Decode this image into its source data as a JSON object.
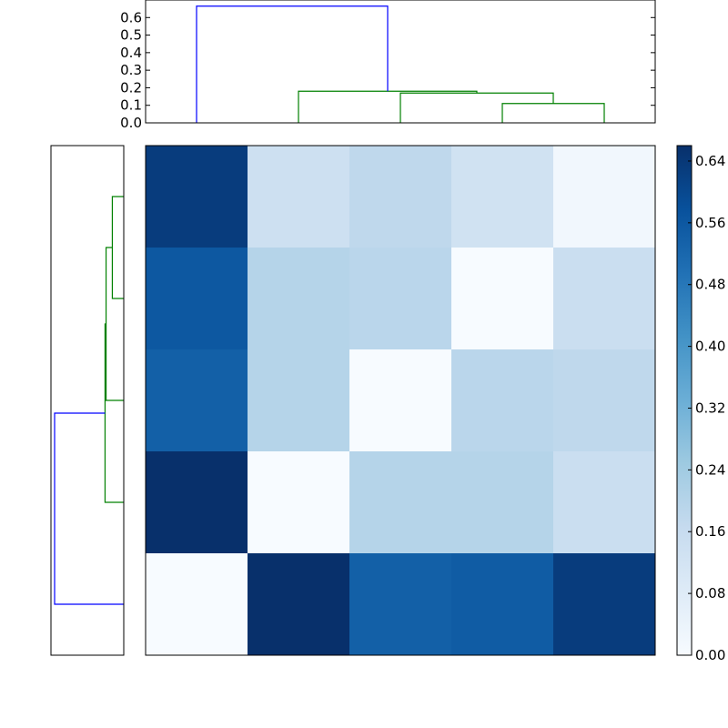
{
  "chart_data": [
    {
      "type": "dendrogram",
      "orientation": "top",
      "ylim": [
        0,
        0.7
      ],
      "yticks": [
        "0.0",
        "0.1",
        "0.2",
        "0.3",
        "0.4",
        "0.5",
        "0.6"
      ],
      "colors": {
        "root": "#0000ff",
        "cluster": "#008000"
      },
      "links": [
        {
          "left": 3.5,
          "right": 4.5,
          "height": 0.11,
          "color": "cluster"
        },
        {
          "left": 2.5,
          "right": 4.0,
          "height": 0.17,
          "color": "cluster"
        },
        {
          "left": 1.5,
          "right": 3.25,
          "height": 0.18,
          "color": "cluster"
        },
        {
          "left": 0.5,
          "right": 2.375,
          "height": 0.665,
          "color": "root"
        }
      ]
    },
    {
      "type": "dendrogram",
      "orientation": "left",
      "xlim": [
        0,
        0.7
      ],
      "colors": {
        "root": "#0000ff",
        "cluster": "#008000"
      },
      "links": [
        {
          "a": 3.5,
          "b": 4.5,
          "height": 0.11,
          "color": "cluster"
        },
        {
          "a": 2.5,
          "b": 4.0,
          "height": 0.17,
          "color": "cluster"
        },
        {
          "a": 1.5,
          "b": 3.25,
          "height": 0.18,
          "color": "cluster"
        },
        {
          "a": 0.5,
          "b": 2.375,
          "height": 0.665,
          "color": "root"
        }
      ]
    },
    {
      "type": "heatmap",
      "rows": 5,
      "cols": 5,
      "values": [
        [
          0.63,
          0.14,
          0.18,
          0.13,
          0.02
        ],
        [
          0.56,
          0.2,
          0.19,
          0.0,
          0.15
        ],
        [
          0.54,
          0.2,
          0.0,
          0.19,
          0.18
        ],
        [
          0.66,
          0.0,
          0.2,
          0.2,
          0.15
        ],
        [
          0.0,
          0.66,
          0.54,
          0.55,
          0.63
        ]
      ],
      "colormap": "Blues",
      "vmin": 0,
      "vmax": 0.66,
      "colorbar_ticks": [
        "0.00",
        "0.08",
        "0.16",
        "0.24",
        "0.32",
        "0.40",
        "0.48",
        "0.56",
        "0.64"
      ]
    }
  ]
}
